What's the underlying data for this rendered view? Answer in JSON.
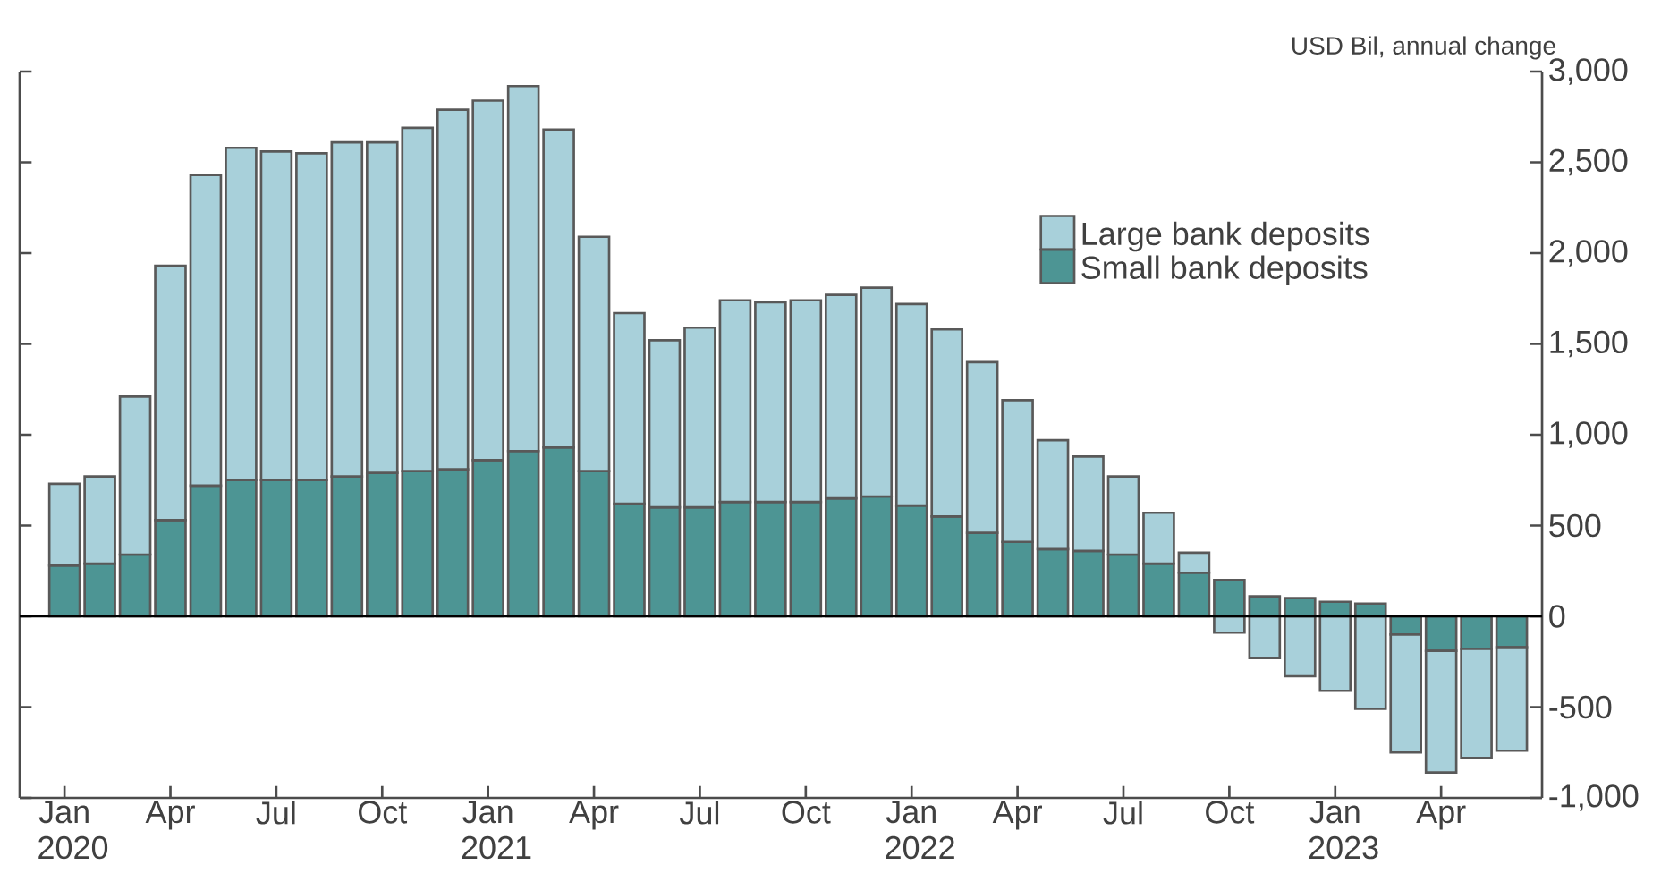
{
  "chart_data": {
    "type": "bar",
    "stacked": true,
    "ylabel": "USD Bil, annual change",
    "categories": [
      "Jan 2020",
      null,
      null,
      "Apr",
      null,
      null,
      "Jul",
      null,
      null,
      "Oct",
      null,
      null,
      "Jan 2021",
      null,
      null,
      "Apr",
      null,
      null,
      "Jul",
      null,
      null,
      "Oct",
      null,
      null,
      "Jan 2022",
      null,
      null,
      "Apr",
      null,
      null,
      "Jul",
      null,
      null,
      "Oct",
      null,
      null,
      "Jan 2023",
      null,
      null,
      "Apr",
      null,
      null
    ],
    "series": [
      {
        "name": "Small bank deposits",
        "color": "#4d9594",
        "values": [
          280,
          290,
          340,
          530,
          720,
          750,
          750,
          750,
          770,
          790,
          800,
          810,
          860,
          910,
          930,
          800,
          620,
          600,
          600,
          630,
          630,
          630,
          650,
          660,
          610,
          550,
          460,
          410,
          370,
          360,
          340,
          290,
          240,
          200,
          110,
          100,
          80,
          70,
          -100,
          -190,
          -180,
          -170
        ]
      },
      {
        "name": "Large bank deposits",
        "color": "#a8d0da",
        "values": [
          450,
          480,
          870,
          1400,
          1710,
          1830,
          1810,
          1800,
          1840,
          1820,
          1890,
          1980,
          1980,
          2010,
          1750,
          1290,
          1050,
          920,
          990,
          1110,
          1100,
          1110,
          1120,
          1150,
          1110,
          1030,
          940,
          780,
          600,
          520,
          430,
          280,
          110,
          -90,
          -230,
          -330,
          -410,
          -510,
          -650,
          -670,
          -600,
          -570
        ]
      }
    ],
    "ylim": [
      -1000,
      3000
    ],
    "yticks": [
      {
        "value": -1000,
        "label": "-1,000"
      },
      -500,
      0,
      500,
      {
        "value": 1000,
        "label": "1,000"
      },
      {
        "value": 1500,
        "label": "1,500"
      },
      {
        "value": 2000,
        "label": "2,000"
      },
      {
        "value": 2500,
        "label": "2,500"
      },
      {
        "value": 3000,
        "label": "3,000"
      }
    ],
    "legend": "top right"
  }
}
